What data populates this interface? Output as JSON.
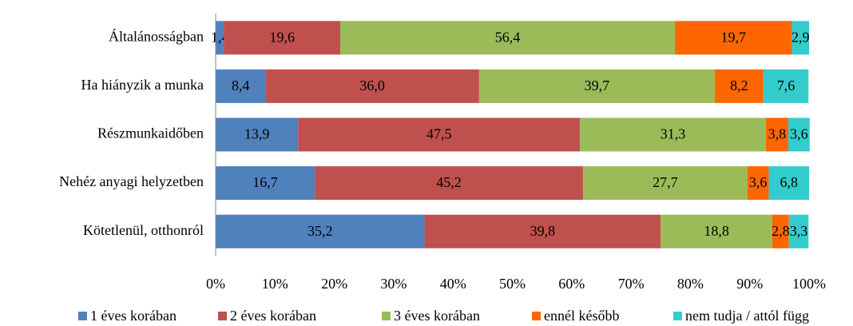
{
  "chart_data": {
    "type": "stacked_barh",
    "categories": [
      "Általánosságban",
      "Ha hiányzik a munka",
      "Részmunkaidőben",
      "Nehéz anyagi helyzetben",
      "Kötetlenül, otthonról"
    ],
    "series": [
      {
        "name": "1 éves korában",
        "color": "#4f81bd",
        "values": [
          1.4,
          8.4,
          13.9,
          16.7,
          35.2
        ],
        "value_labels": [
          "1,4",
          "8,4",
          "13,9",
          "16,7",
          "35,2"
        ]
      },
      {
        "name": "2 éves korában",
        "color": "#c0504d",
        "values": [
          19.6,
          36.0,
          47.5,
          45.2,
          39.8
        ],
        "value_labels": [
          "19,6",
          "36,0",
          "47,5",
          "45,2",
          "39,8"
        ]
      },
      {
        "name": "3 éves korában",
        "color": "#9bbb59",
        "values": [
          56.4,
          39.7,
          31.3,
          27.7,
          18.8
        ],
        "value_labels": [
          "56,4",
          "39,7",
          "31,3",
          "27,7",
          "18,8"
        ]
      },
      {
        "name": "ennél később",
        "color": "#ff6600",
        "values": [
          19.7,
          8.2,
          3.8,
          3.6,
          2.8
        ],
        "value_labels": [
          "19,7",
          "8,2",
          "3,8",
          "3,6",
          "2,8"
        ]
      },
      {
        "name": "nem tudja / attól függ",
        "color": "#33cccc",
        "values": [
          2.9,
          7.6,
          3.6,
          6.8,
          3.3
        ],
        "value_labels": [
          "2,9",
          "7,6",
          "3,6",
          "6,8",
          "3,3"
        ]
      }
    ],
    "xlim": [
      0,
      100
    ],
    "xticks": [
      {
        "value": 0,
        "label": "0%"
      },
      {
        "value": 10,
        "label": "10%"
      },
      {
        "value": 20,
        "label": "20%"
      },
      {
        "value": 30,
        "label": "30%"
      },
      {
        "value": 40,
        "label": "40%"
      },
      {
        "value": 50,
        "label": "50%"
      },
      {
        "value": 60,
        "label": "60%"
      },
      {
        "value": 70,
        "label": "70%"
      },
      {
        "value": 80,
        "label": "80%"
      },
      {
        "value": 90,
        "label": "90%"
      },
      {
        "value": 100,
        "label": "100%"
      }
    ],
    "legend": "bottom"
  }
}
